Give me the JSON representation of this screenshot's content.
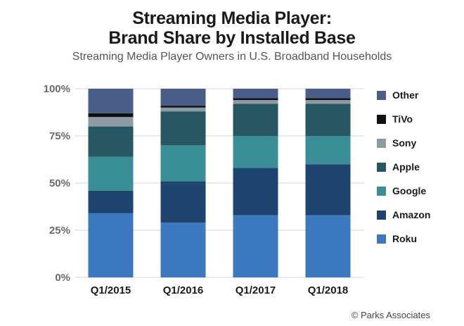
{
  "chart_data": {
    "type": "bar",
    "stacked": true,
    "title": "Streaming Media Player:",
    "title_line2": "Brand Share by Installed Base",
    "subtitle": "Streaming Media Player Owners in U.S. Broadband Households",
    "credit": "© Parks Associates",
    "categories": [
      "Q1/2015",
      "Q1/2016",
      "Q1/2017",
      "Q1/2018"
    ],
    "yticks": [
      "0%",
      "25%",
      "50%",
      "75%",
      "100%"
    ],
    "ylim": [
      0,
      100
    ],
    "grid": true,
    "legend_placement": "right",
    "series": [
      {
        "name": "Roku",
        "color": "#3b78c0",
        "values": [
          34,
          29,
          33,
          33
        ]
      },
      {
        "name": "Amazon",
        "color": "#1f446f",
        "values": [
          12,
          22,
          25,
          27
        ]
      },
      {
        "name": "Google",
        "color": "#3a8f96",
        "values": [
          18,
          19,
          17,
          15
        ]
      },
      {
        "name": "Apple",
        "color": "#265762",
        "values": [
          16,
          18,
          17,
          17
        ]
      },
      {
        "name": "Sony",
        "color": "#8c9ba4",
        "values": [
          5,
          2,
          2,
          2
        ]
      },
      {
        "name": "TiVo",
        "color": "#111111",
        "values": [
          2,
          1,
          1,
          1
        ]
      },
      {
        "name": "Other",
        "color": "#4a5e8a",
        "values": [
          13,
          9,
          5,
          5
        ]
      }
    ]
  }
}
